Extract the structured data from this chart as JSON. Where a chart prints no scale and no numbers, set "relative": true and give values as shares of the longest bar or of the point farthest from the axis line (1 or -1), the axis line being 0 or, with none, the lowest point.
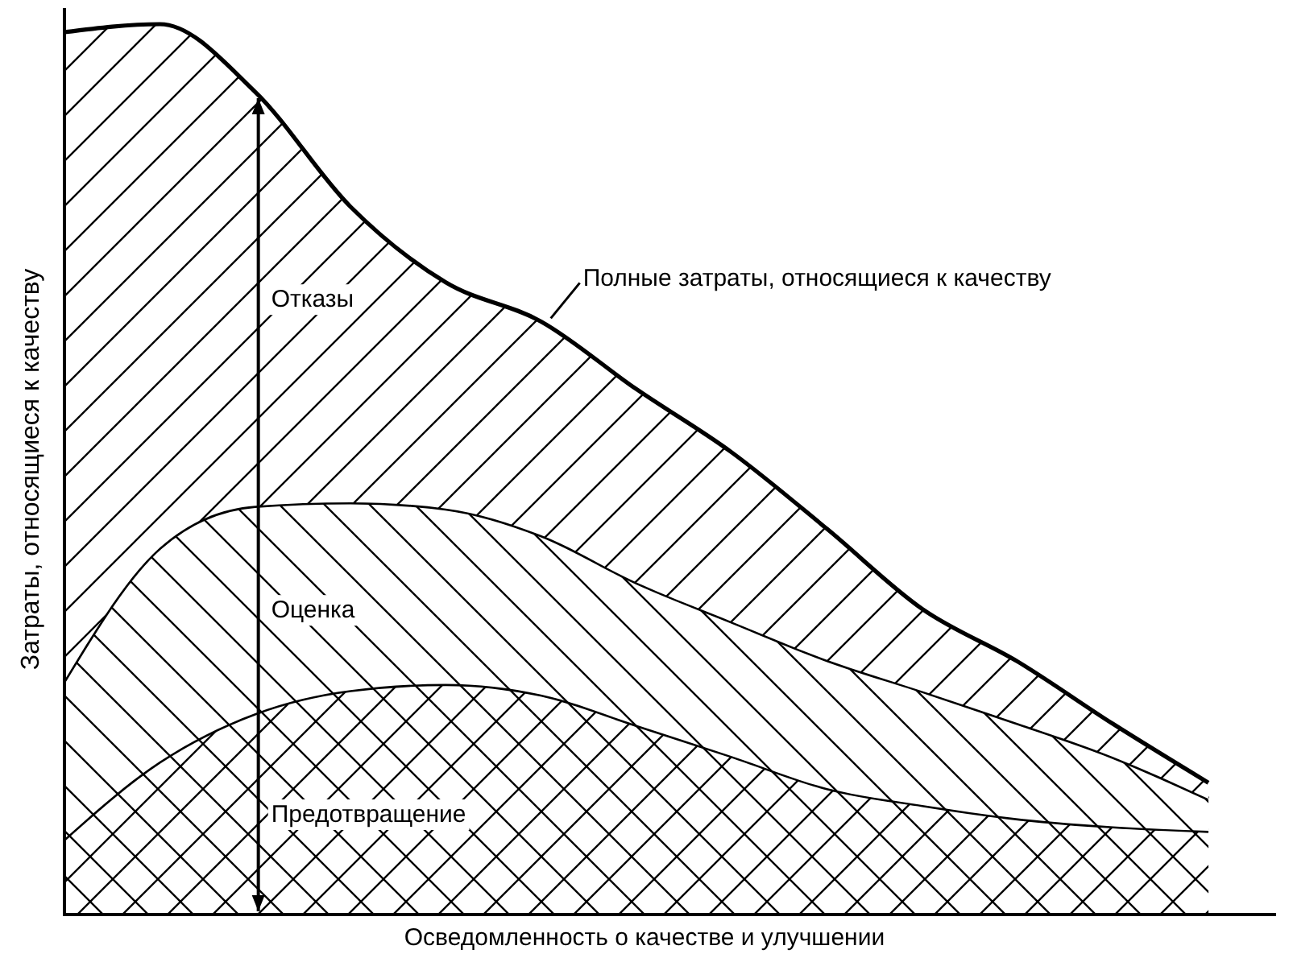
{
  "chart_data": {
    "type": "area",
    "stacked": true,
    "relative": true,
    "xlabel": "Осведомленность о качестве и улучшении",
    "ylabel": "Затраты, относящиеся к качеству",
    "categories": [
      null,
      null,
      null,
      null,
      null,
      null,
      null,
      null,
      null,
      null,
      null,
      null,
      null
    ],
    "series": [
      {
        "name": "Предотвращение",
        "color": "#000000",
        "values": [
          0.085,
          0.172,
          0.226,
          0.252,
          0.259,
          0.247,
          0.213,
          0.178,
          0.142,
          0.123,
          0.108,
          0.099,
          0.094
        ]
      },
      {
        "name": "Оценка",
        "color": "#000000",
        "values": [
          0.178,
          0.24,
          0.233,
          0.211,
          0.197,
          0.179,
          0.16,
          0.151,
          0.144,
          0.128,
          0.107,
          0.078,
          0.036
        ]
      },
      {
        "name": "Отказы",
        "color": "#000000",
        "values": [
          0.728,
          0.588,
          0.465,
          0.332,
          0.254,
          0.24,
          0.217,
          0.19,
          0.147,
          0.092,
          0.069,
          0.037,
          0.018
        ]
      }
    ],
    "annotations": [
      "Полные затраты, относящиеся к качеству"
    ],
    "legend": false
  }
}
